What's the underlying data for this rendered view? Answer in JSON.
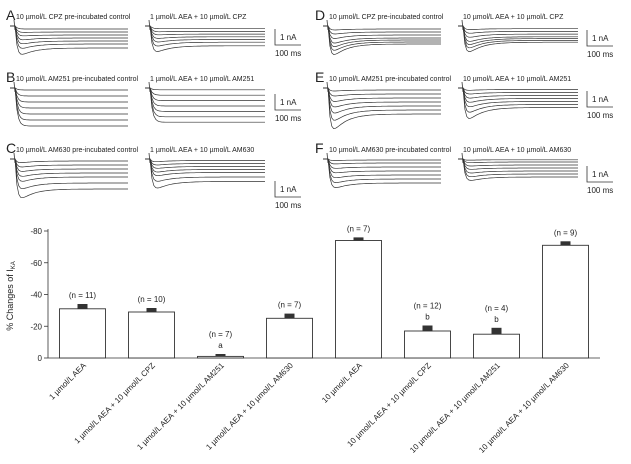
{
  "traces": {
    "panels": [
      {
        "letter": "A",
        "left_label": "10 µmol/L CPZ pre-incubated control",
        "right_label": "1 µmol/L AEA + 10 µmol/L CPZ",
        "scale_current": "1 nA",
        "scale_time": "100 ms"
      },
      {
        "letter": "B",
        "left_label": "10 µmol/L AM251 pre-incubated control",
        "right_label": "1 µmol/L AEA + 10 µmol/L AM251",
        "scale_current": "1 nA",
        "scale_time": "100 ms"
      },
      {
        "letter": "C",
        "left_label": "10 µmol/L AM630 pre-incubated control",
        "right_label": "1 µmol/L AEA + 10 µmol/L AM630",
        "scale_current": "1 nA",
        "scale_time": "100 ms"
      },
      {
        "letter": "D",
        "left_label": "10 µmol/L CPZ pre-incubated control",
        "right_label": "10 µmol/L AEA + 10 µmol/L CPZ",
        "scale_current": "1 nA",
        "scale_time": "100 ms"
      },
      {
        "letter": "E",
        "left_label": "10 µmol/L AM251 pre-incubated control",
        "right_label": "10 µmol/L AEA + 10 µmol/L AM251",
        "scale_current": "1 nA",
        "scale_time": "100 ms"
      },
      {
        "letter": "F",
        "left_label": "10 µmol/L AM630 pre-incubated control",
        "right_label": "10 µmol/L AEA + 10 µmol/L AM630",
        "scale_current": "1 nA",
        "scale_time": "100 ms"
      }
    ]
  },
  "chart_data": {
    "type": "bar",
    "ylabel": "% Changes of I",
    "ylabel_sub": "KA",
    "ylim": [
      0,
      -80
    ],
    "yticks": [
      0,
      -20,
      -40,
      -60,
      -80
    ],
    "categories": [
      "1 µmol/L AEA",
      "1 µmol/L AEA + 10 µmol/L CPZ",
      "1 µmol/L AEA + 10 µmol/L AM251",
      "1 µmol/L AEA + 10 µmol/L AM630",
      "10 µmol/L AEA",
      "10 µmol/L AEA + 10 µmol/L CPZ",
      "10 µmol/L AEA + 10 µmol/L AM251",
      "10 µmol/L AEA + 10 µmol/L AM630"
    ],
    "values": [
      -31,
      -29,
      -1,
      -25,
      -74,
      -17,
      -15,
      -71
    ],
    "errors": [
      3,
      2.5,
      1.5,
      3,
      2,
      3.5,
      4,
      2.5
    ],
    "n_labels": [
      "(n = 11)",
      "(n = 10)",
      "(n = 7)",
      "(n = 7)",
      "(n = 7)",
      "(n = 12)",
      "(n = 4)",
      "(n = 9)"
    ],
    "sig_letters": [
      "",
      "",
      "a",
      "",
      "",
      "b",
      "b",
      ""
    ]
  }
}
